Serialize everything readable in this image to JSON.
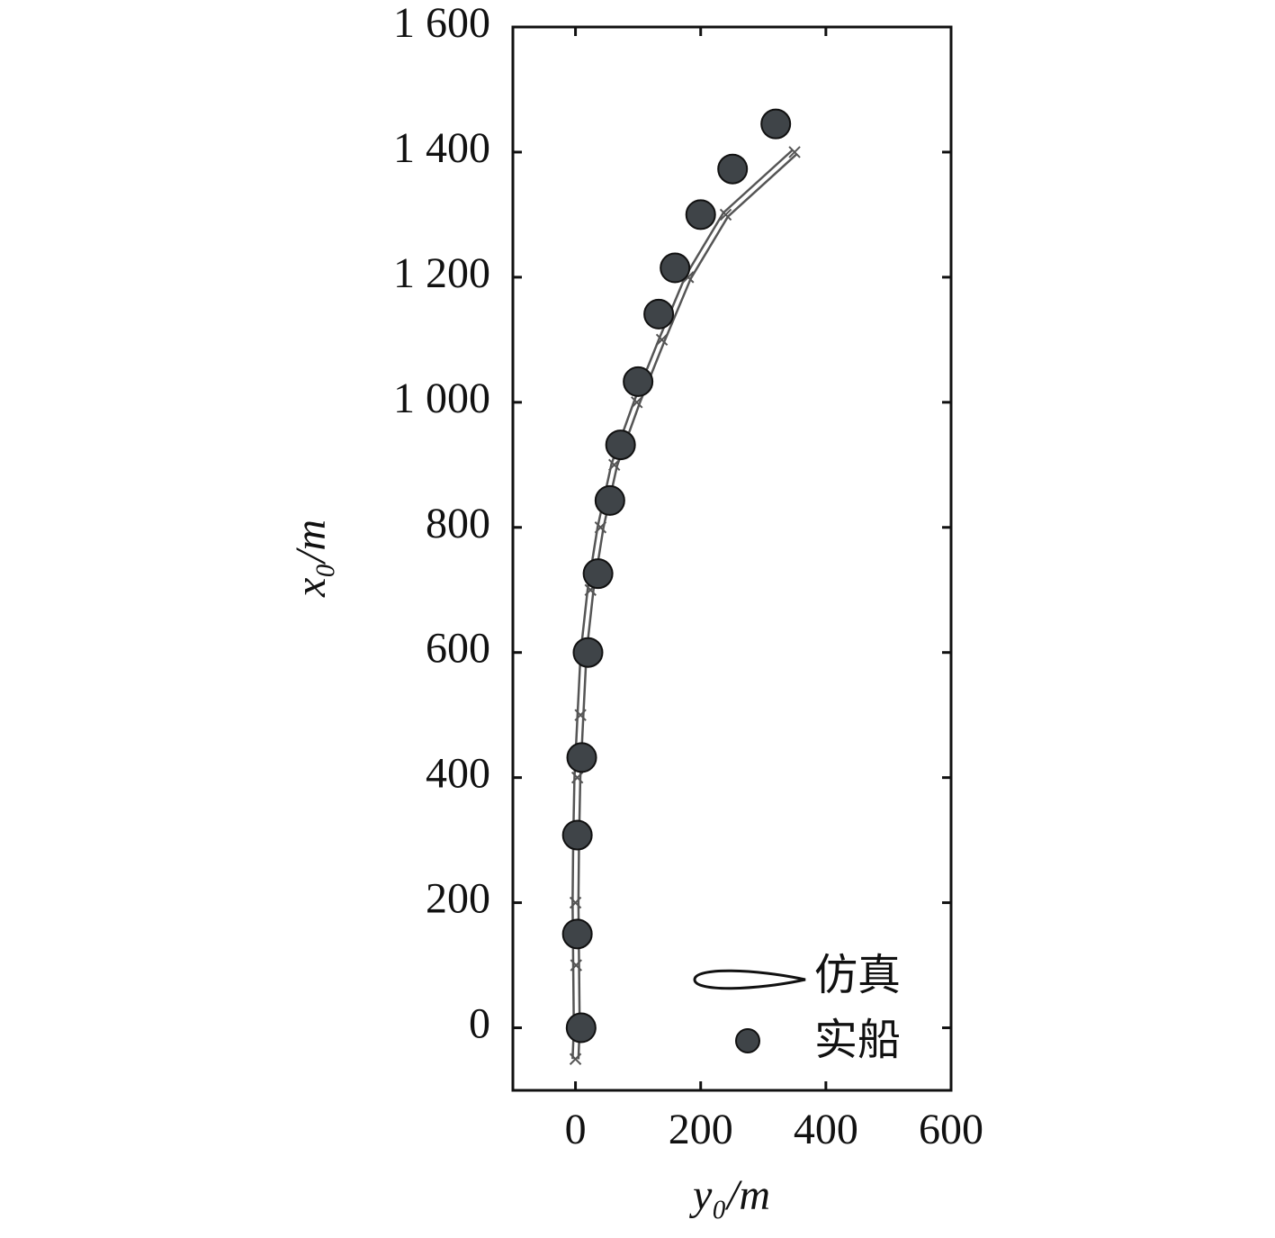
{
  "chart_data": {
    "type": "line",
    "xlabel": "y₀/m",
    "ylabel": "x₀/m",
    "xlim": [
      -100,
      600
    ],
    "xticks": [
      0,
      200,
      400,
      600
    ],
    "ylim": [
      -100,
      1600
    ],
    "yticks": [
      0,
      200,
      400,
      600,
      800,
      {
        "value": 1000,
        "label": "1 000"
      },
      {
        "value": 1200,
        "label": "1 200"
      },
      {
        "value": 1400,
        "label": "1 400"
      },
      {
        "value": 1600,
        "label": "1 600"
      }
    ],
    "legend": "lower right",
    "series": [
      {
        "name": "仿真",
        "type": "line",
        "color": "#555555",
        "x": [
          0,
          2,
          1,
          0,
          1,
          3,
          8,
          13,
          24,
          40,
          62,
          98,
          138,
          180,
          240,
          350
        ],
        "values": [
          -50,
          0,
          100,
          200,
          300,
          400,
          500,
          600,
          700,
          800,
          900,
          1000,
          1100,
          1200,
          1300,
          1400
        ]
      },
      {
        "name": "实船",
        "type": "scatter",
        "color": "#3f4448",
        "x": [
          9,
          3,
          3,
          10,
          20,
          36,
          55,
          72,
          100,
          133,
          159,
          200,
          251,
          320
        ],
        "values": [
          0,
          150,
          308,
          432,
          600,
          726,
          843,
          932,
          1033,
          1141,
          1215,
          1300,
          1373,
          1445
        ]
      }
    ]
  }
}
